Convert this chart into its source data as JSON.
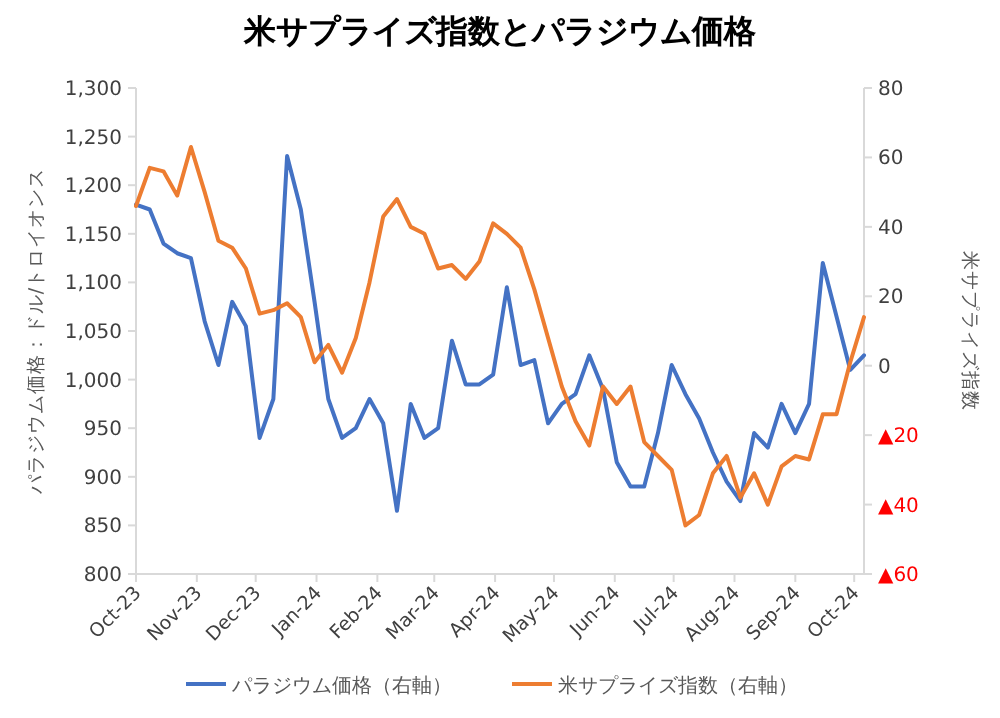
{
  "chart_data": {
    "type": "line",
    "title": "米サプライズ指数とパラジウム価格",
    "ylabel": "パラジウム価格：ドル/トロイオンス",
    "y2label": "米サプライズ指数",
    "x": [
      "2023-10-01",
      "2023-10-08",
      "2023-10-15",
      "2023-10-22",
      "2023-10-29",
      "2023-11-05",
      "2023-11-12",
      "2023-11-19",
      "2023-11-26",
      "2023-12-03",
      "2023-12-10",
      "2023-12-17",
      "2023-12-24",
      "2023-12-31",
      "2024-01-07",
      "2024-01-14",
      "2024-01-21",
      "2024-01-28",
      "2024-02-04",
      "2024-02-11",
      "2024-02-18",
      "2024-02-25",
      "2024-03-03",
      "2024-03-10",
      "2024-03-17",
      "2024-03-24",
      "2024-03-31",
      "2024-04-07",
      "2024-04-14",
      "2024-04-21",
      "2024-04-28",
      "2024-05-05",
      "2024-05-12",
      "2024-05-19",
      "2024-05-26",
      "2024-06-02",
      "2024-06-09",
      "2024-06-16",
      "2024-06-23",
      "2024-06-30",
      "2024-07-07",
      "2024-07-14",
      "2024-07-21",
      "2024-07-28",
      "2024-08-04",
      "2024-08-11",
      "2024-08-18",
      "2024-08-25",
      "2024-09-01",
      "2024-09-08",
      "2024-09-15",
      "2024-09-22",
      "2024-09-29",
      "2024-10-06"
    ],
    "series": [
      {
        "name": "パラジウム価格（右軸）",
        "color": "#4472c4",
        "values": [
          1180,
          1175,
          1140,
          1130,
          1125,
          1060,
          1015,
          1080,
          1055,
          940,
          980,
          1230,
          1175,
          1080,
          980,
          940,
          950,
          980,
          955,
          865,
          975,
          940,
          950,
          1040,
          995,
          995,
          1005,
          1095,
          1015,
          1020,
          955,
          975,
          985,
          1025,
          990,
          915,
          890,
          890,
          945,
          1015,
          985,
          960,
          925,
          895,
          875,
          945,
          930,
          975,
          945,
          975,
          1120,
          1065,
          1010,
          1025
        ]
      },
      {
        "name": "米サプライズ指数（右軸）",
        "color": "#ed7d31",
        "axis": "y2",
        "values": [
          46,
          57,
          56,
          49,
          63,
          50,
          36,
          34,
          28,
          15,
          16,
          18,
          14,
          1,
          6,
          -2,
          8,
          24,
          43,
          48,
          40,
          38,
          28,
          29,
          25,
          30,
          41,
          38,
          34,
          22,
          8,
          -6,
          -16,
          -23,
          -6,
          -11,
          -6,
          -22,
          -26,
          -30,
          -46,
          -43,
          -31,
          -26,
          -38,
          -31,
          -40,
          -29,
          -26,
          -27,
          -14,
          -14,
          1,
          14
        ]
      }
    ],
    "xlim": [
      "2023-10-01",
      "2024-10-06"
    ],
    "xticks": [
      {
        "value": "2023-10-01",
        "label": "Oct-23"
      },
      {
        "value": "2023-11-01",
        "label": "Nov-23"
      },
      {
        "value": "2023-12-01",
        "label": "Dec-23"
      },
      {
        "value": "2024-01-01",
        "label": "Jan-24"
      },
      {
        "value": "2024-02-01",
        "label": "Feb-24"
      },
      {
        "value": "2024-03-01",
        "label": "Mar-24"
      },
      {
        "value": "2024-04-01",
        "label": "Apr-24"
      },
      {
        "value": "2024-05-01",
        "label": "May-24"
      },
      {
        "value": "2024-06-01",
        "label": "Jun-24"
      },
      {
        "value": "2024-07-01",
        "label": "Jul-24"
      },
      {
        "value": "2024-08-01",
        "label": "Aug-24"
      },
      {
        "value": "2024-09-01",
        "label": "Sep-24"
      },
      {
        "value": "2024-10-01",
        "label": "Oct-24"
      }
    ],
    "ylim": [
      800,
      1300
    ],
    "yticks": [
      {
        "value": 800,
        "label": "800"
      },
      {
        "value": 850,
        "label": "850"
      },
      {
        "value": 900,
        "label": "900"
      },
      {
        "value": 950,
        "label": "950"
      },
      {
        "value": 1000,
        "label": "1,000"
      },
      {
        "value": 1050,
        "label": "1,050"
      },
      {
        "value": 1100,
        "label": "1,100"
      },
      {
        "value": 1150,
        "label": "1,150"
      },
      {
        "value": 1200,
        "label": "1,200"
      },
      {
        "value": 1250,
        "label": "1,250"
      },
      {
        "value": 1300,
        "label": "1,300"
      }
    ],
    "y2lim": [
      -60,
      80
    ],
    "y2ticks": [
      {
        "value": -60,
        "label": "▲60"
      },
      {
        "value": -40,
        "label": "▲40"
      },
      {
        "value": -20,
        "label": "▲20"
      },
      0,
      20,
      40,
      60,
      80
    ],
    "grid": false,
    "legend": "bottom",
    "marker": "none",
    "line_style": "solid"
  }
}
